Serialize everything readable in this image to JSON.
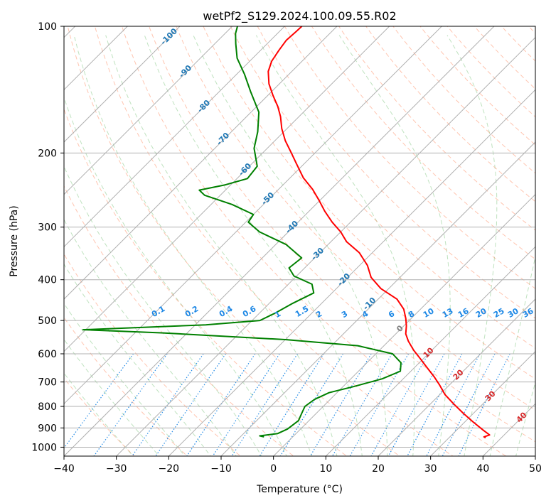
{
  "chart_data": {
    "type": "line",
    "title": "wetPf2_S129.2024.100.09.55.R02",
    "xlabel": "Temperature (°C)",
    "ylabel": "Pressure (hPa)",
    "xlim": [
      -40,
      50
    ],
    "ylim": [
      1050,
      100
    ],
    "y_scale": "log",
    "grid": true,
    "x_ticks": [
      -40,
      -30,
      -20,
      -10,
      0,
      10,
      20,
      30,
      40,
      50
    ],
    "y_ticks": [
      100,
      200,
      300,
      400,
      500,
      600,
      700,
      800,
      900,
      1000
    ],
    "colors": {
      "temperature": "#ff0000",
      "dewpoint": "#008000",
      "dry_adiabat": "#ff7f50",
      "moist_adiabat": "#2ca02c",
      "mixing_ratio": "#1e88e5",
      "isotherm": "#808080",
      "theta_label": "#1f77b4",
      "isotherm_label_warm": "#d62728",
      "isotherm_label_zero": "#808080"
    },
    "series": [
      {
        "key": "temperature",
        "points": [
          [
            37.0,
            950
          ],
          [
            36.5,
            945
          ],
          [
            37.2,
            935
          ],
          [
            35.0,
            910
          ],
          [
            31.5,
            870
          ],
          [
            28.0,
            830
          ],
          [
            24.5,
            790
          ],
          [
            21.0,
            750
          ],
          [
            18.0,
            710
          ],
          [
            15.5,
            680
          ],
          [
            12.5,
            648
          ],
          [
            9.5,
            617
          ],
          [
            6.5,
            588
          ],
          [
            3.8,
            560
          ],
          [
            1.9,
            538
          ],
          [
            0.5,
            515
          ],
          [
            -1.0,
            495
          ],
          [
            -3.2,
            470
          ],
          [
            -6.4,
            445
          ],
          [
            -11.5,
            420
          ],
          [
            -15.5,
            395
          ],
          [
            -18.5,
            370
          ],
          [
            -22.5,
            345
          ],
          [
            -27.0,
            325
          ],
          [
            -30.0,
            308
          ],
          [
            -33.5,
            292
          ],
          [
            -37.0,
            275
          ],
          [
            -40.0,
            260
          ],
          [
            -43.5,
            244
          ],
          [
            -47.5,
            229
          ],
          [
            -51.5,
            212
          ],
          [
            -54.5,
            200
          ],
          [
            -58.0,
            187
          ],
          [
            -61.0,
            175
          ],
          [
            -63.5,
            164
          ],
          [
            -66.0,
            155
          ],
          [
            -69.0,
            146
          ],
          [
            -72.0,
            137
          ],
          [
            -74.5,
            128
          ],
          [
            -75.8,
            121
          ],
          [
            -76.5,
            114
          ],
          [
            -77.0,
            108
          ],
          [
            -76.8,
            103
          ],
          [
            -76.7,
            100
          ]
        ]
      },
      {
        "key": "dewpoint",
        "points": [
          [
            -5.5,
            945
          ],
          [
            -6.5,
            940
          ],
          [
            -3.5,
            928
          ],
          [
            -2.5,
            905
          ],
          [
            -2.0,
            865
          ],
          [
            -2.8,
            830
          ],
          [
            -3.5,
            800
          ],
          [
            -3.0,
            770
          ],
          [
            -1.5,
            742
          ],
          [
            2.0,
            718
          ],
          [
            6.0,
            688
          ],
          [
            8.0,
            660
          ],
          [
            6.5,
            630
          ],
          [
            3.2,
            600
          ],
          [
            -5.0,
            574
          ],
          [
            -20.0,
            555
          ],
          [
            -45.0,
            535
          ],
          [
            -60.5,
            526
          ],
          [
            -38.0,
            512
          ],
          [
            -28.5,
            500
          ],
          [
            -27.0,
            480
          ],
          [
            -25.5,
            455
          ],
          [
            -23.5,
            430
          ],
          [
            -25.5,
            410
          ],
          [
            -30.5,
            392
          ],
          [
            -33.0,
            375
          ],
          [
            -32.5,
            355
          ],
          [
            -38.0,
            330
          ],
          [
            -45.5,
            308
          ],
          [
            -49.5,
            292
          ],
          [
            -50.0,
            280
          ],
          [
            -56.0,
            265
          ],
          [
            -63.0,
            252
          ],
          [
            -65.0,
            245
          ],
          [
            -61.0,
            238
          ],
          [
            -58.0,
            230
          ],
          [
            -58.5,
            215
          ],
          [
            -62.5,
            195
          ],
          [
            -65.0,
            178
          ],
          [
            -68.5,
            160
          ],
          [
            -74.0,
            143
          ],
          [
            -78.5,
            130
          ],
          [
            -83.0,
            119
          ],
          [
            -86.0,
            110
          ],
          [
            -88.0,
            104
          ],
          [
            -89.0,
            100
          ]
        ]
      }
    ],
    "dry_adiabat_labels": [
      "-100",
      "-90",
      "-80",
      "-70",
      "-60",
      "-50",
      "-40",
      "-30",
      "-20",
      "-10"
    ],
    "mixing_ratio_labels": [
      "0.1",
      "0.2",
      "0.4",
      "0.6",
      "1",
      "1.5",
      "2",
      "3",
      "4",
      "6",
      "8",
      "10",
      "13",
      "16",
      "20",
      "25",
      "30",
      "36"
    ],
    "isotherm_labels": [
      "0",
      "10",
      "20",
      "30",
      "40"
    ]
  }
}
